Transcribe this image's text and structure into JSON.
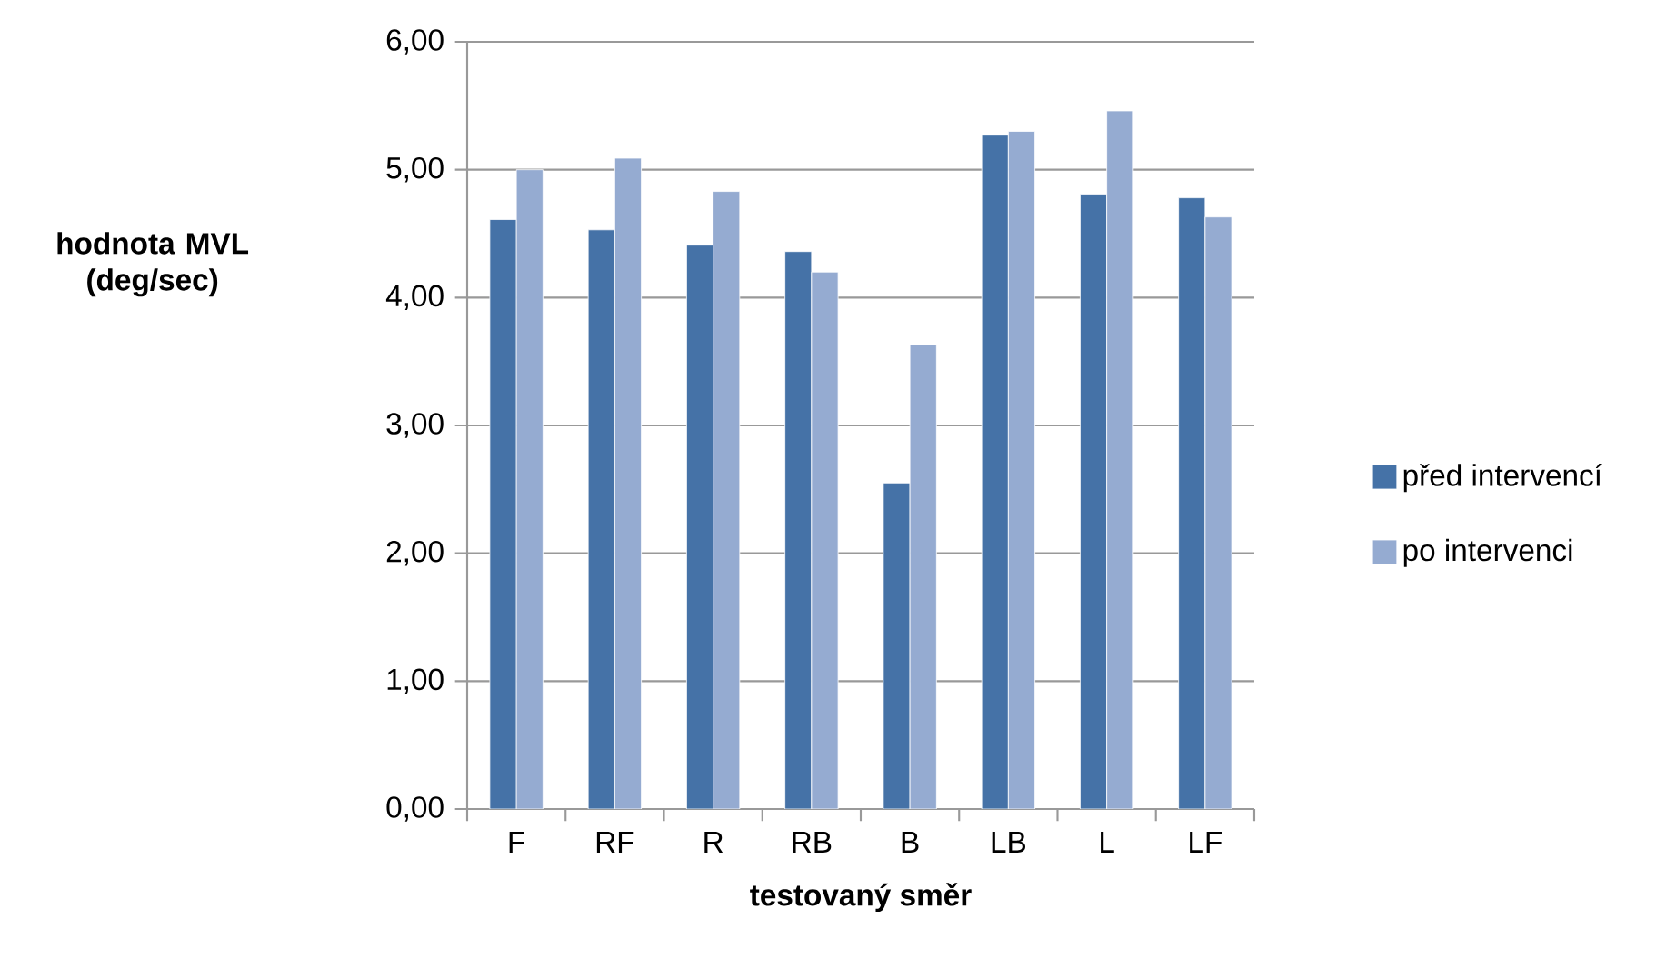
{
  "chart_data": {
    "type": "bar",
    "xlabel": "testovaný směr",
    "ylabel": "hodnota MVL (deg/sec)",
    "categories": [
      "F",
      "RF",
      "R",
      "RB",
      "B",
      "LB",
      "L",
      "LF"
    ],
    "series": [
      {
        "name": "před intervencí",
        "color": "#4572a7",
        "values": [
          4.61,
          4.53,
          4.41,
          4.36,
          2.55,
          5.27,
          4.81,
          4.78
        ]
      },
      {
        "name": "po intervenci",
        "color": "#95abd1",
        "values": [
          5.0,
          5.09,
          4.83,
          4.2,
          3.63,
          5.3,
          5.46,
          4.63
        ]
      }
    ],
    "ylim": [
      0,
      6
    ],
    "yticks": [
      {
        "value": 0,
        "label": "0,00"
      },
      {
        "value": 1,
        "label": "1,00"
      },
      {
        "value": 2,
        "label": "2,00"
      },
      {
        "value": 3,
        "label": "3,00"
      },
      {
        "value": 4,
        "label": "4,00"
      },
      {
        "value": 5,
        "label": "5,00"
      },
      {
        "value": 6,
        "label": "6,00"
      }
    ],
    "grid": "y",
    "legend": "right"
  }
}
